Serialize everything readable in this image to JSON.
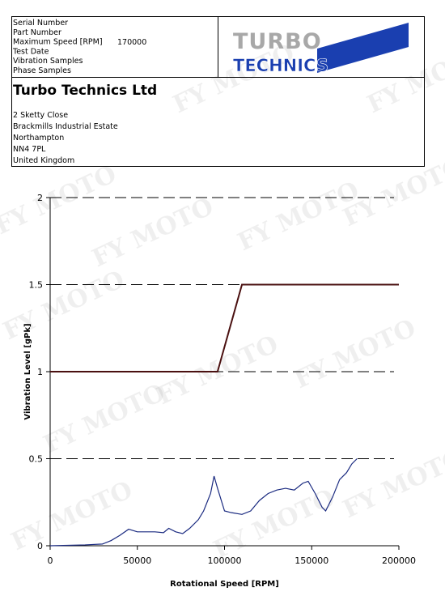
{
  "header": {
    "fields": [
      "Serial Number",
      "Part Number",
      "Maximum Speed [RPM]",
      "Test Date",
      "Vibration Samples",
      "Phase Samples"
    ],
    "max_speed": 170000,
    "logo": {
      "top": "TURBO",
      "bottom": "TECHNICS"
    },
    "company": "Turbo Technics Ltd",
    "address": [
      "2 Sketty Close",
      "Brackmills Industrial Estate",
      "Northampton",
      "NN4 7PL",
      "United Kingdom"
    ]
  },
  "watermark": "FY MOTO",
  "chart_data": {
    "type": "line",
    "x_label": "Rotational Speed [RPM]",
    "y_label": "Vibration Level [gPk]",
    "xlim": [
      0,
      200000
    ],
    "ylim": [
      0,
      2
    ],
    "xticks": [
      0,
      50000,
      100000,
      150000,
      200000
    ],
    "yticks": [
      0,
      0.5,
      1,
      1.5,
      2
    ],
    "grid": true,
    "series": [
      {
        "color": "#4a1010",
        "x": [
          0,
          96000,
          110000,
          200000
        ],
        "values": [
          1,
          1,
          1.5,
          1.5
        ]
      },
      {
        "color": "#1a2a80",
        "x": [
          0,
          20000,
          30000,
          35000,
          40000,
          45000,
          50000,
          55000,
          60000,
          65000,
          68000,
          72000,
          76000,
          80000,
          85000,
          88000,
          92000,
          94000,
          96000,
          100000,
          104000,
          110000,
          115000,
          120000,
          125000,
          130000,
          135000,
          140000,
          145000,
          148000,
          152000,
          156000,
          158000,
          162000,
          166000,
          170000,
          173000,
          176000
        ],
        "values": [
          0,
          0.005,
          0.01,
          0.03,
          0.06,
          0.095,
          0.08,
          0.08,
          0.08,
          0.075,
          0.1,
          0.08,
          0.07,
          0.1,
          0.15,
          0.2,
          0.3,
          0.4,
          0.33,
          0.2,
          0.19,
          0.18,
          0.2,
          0.26,
          0.3,
          0.32,
          0.33,
          0.32,
          0.36,
          0.37,
          0.3,
          0.22,
          0.2,
          0.28,
          0.38,
          0.42,
          0.47,
          0.5
        ]
      }
    ]
  }
}
